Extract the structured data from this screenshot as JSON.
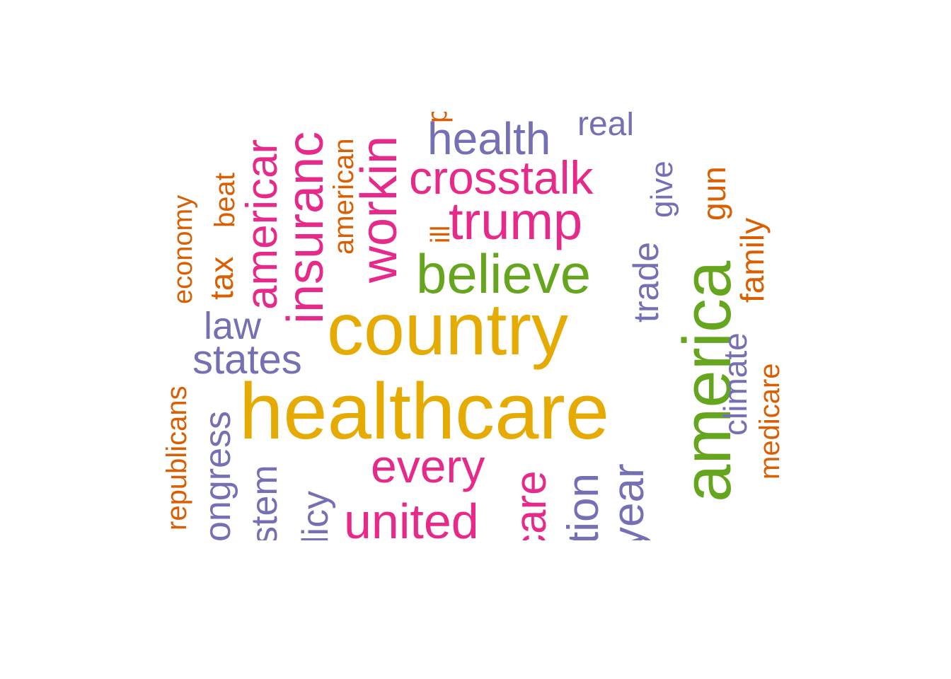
{
  "colors": {
    "gold": "#e6ab02",
    "green": "#66a61e",
    "pink": "#e7298a",
    "purple": "#7570b3",
    "orange": "#d95f02"
  },
  "words": [
    "healthcare",
    "country",
    "america",
    "believe",
    "trump",
    "crosstalk",
    "health",
    "real",
    "every",
    "united",
    "states",
    "law",
    "insuranc",
    "americar",
    "workin",
    "american",
    "economy",
    "beat",
    "tax",
    "give",
    "trade",
    "gun",
    "family",
    "climate",
    "medicare",
    "republicans",
    "ongress",
    "ystem",
    "olicy",
    "care",
    "stion",
    "year",
    "ill",
    "p"
  ]
}
